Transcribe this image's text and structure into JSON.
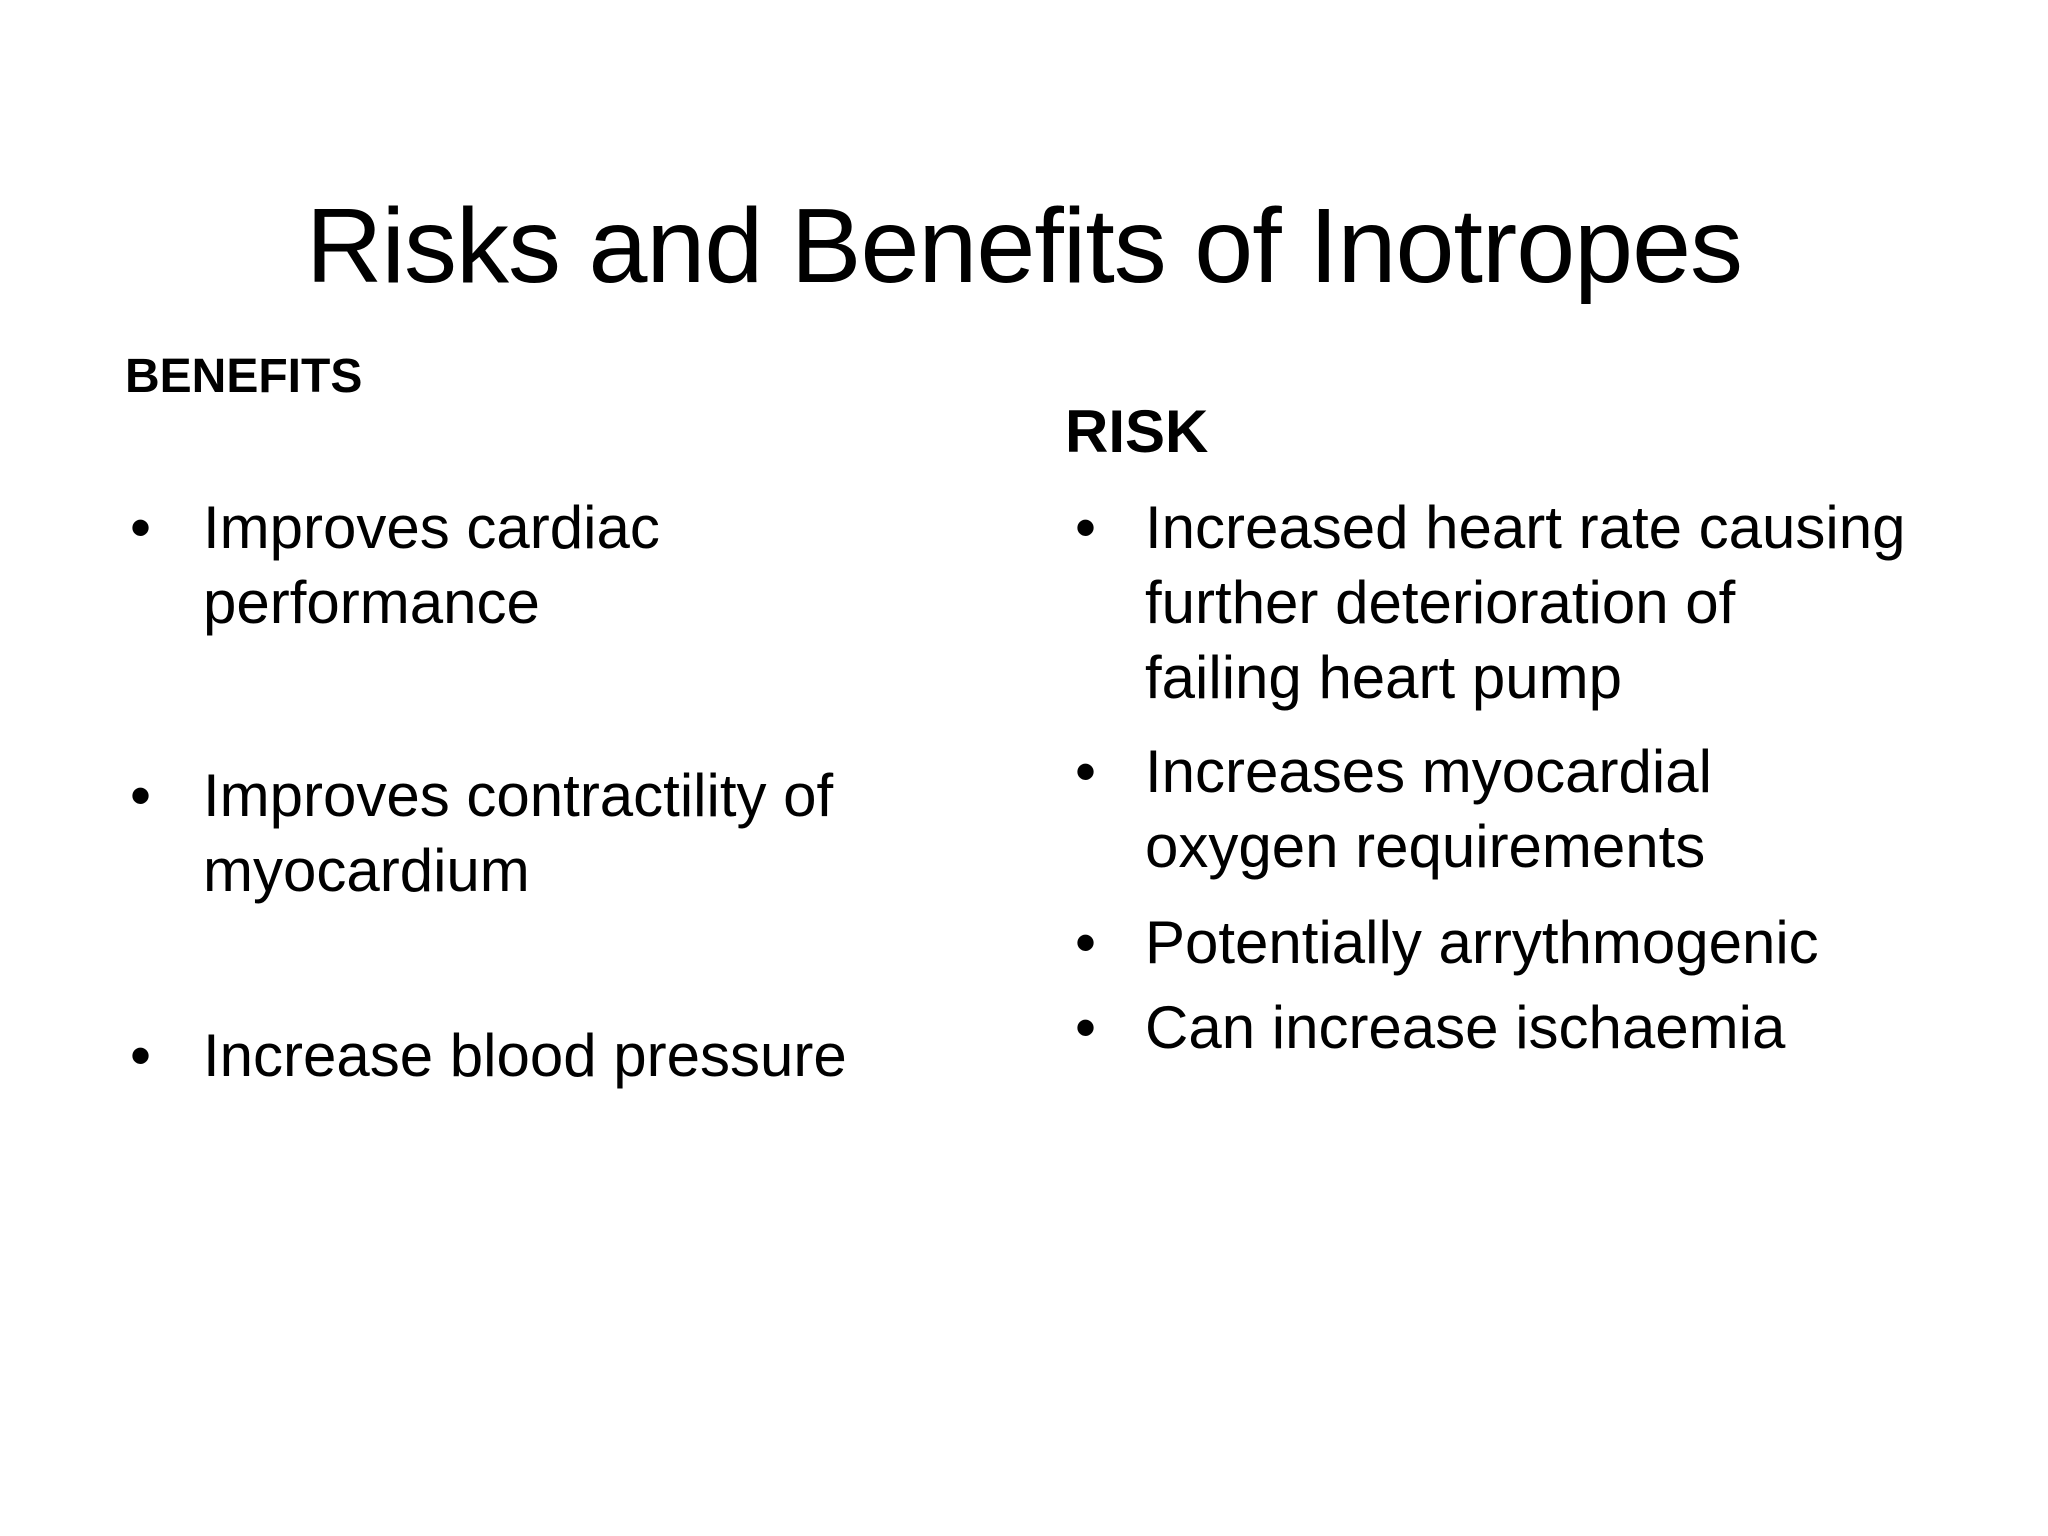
{
  "slide": {
    "title": "Risks and Benefits of Inotropes",
    "bullet_char": "•",
    "colors": {
      "background": "#ffffff",
      "text": "#000000"
    },
    "benefits": {
      "heading": "BENEFITS",
      "items": [
        {
          "lines": [
            "Improves cardiac",
            "performance"
          ]
        },
        {
          "lines": [
            "Improves contractility of",
            "myocardium"
          ]
        },
        {
          "lines": [
            "Increase blood pressure"
          ]
        }
      ]
    },
    "risks": {
      "heading": "RISK",
      "items": [
        {
          "lines": [
            "Increased heart rate causing",
            "further deterioration of",
            "failing heart pump"
          ]
        },
        {
          "lines": [
            "Increases myocardial",
            "oxygen requirements"
          ]
        },
        {
          "lines": [
            "Potentially arrythmogenic"
          ]
        },
        {
          "lines": [
            "Can increase ischaemia"
          ]
        }
      ]
    }
  }
}
